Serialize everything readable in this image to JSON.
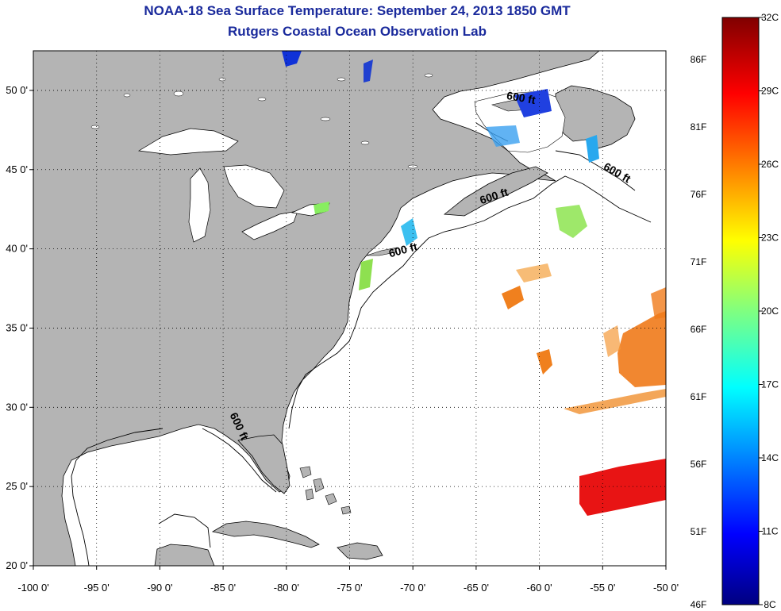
{
  "title": "NOAA-18 Sea Surface Temperature:  September 24, 2013 1850 GMT",
  "subtitle": "Rutgers Coastal Ocean Observation Lab",
  "map": {
    "lon_range": [
      -100,
      -50
    ],
    "lat_range": [
      20,
      52.5
    ],
    "lon_ticks": [
      {
        "value": -100,
        "label": "-100 0'"
      },
      {
        "value": -95,
        "label": "-95 0'"
      },
      {
        "value": -90,
        "label": "-90 0'"
      },
      {
        "value": -85,
        "label": "-85 0'"
      },
      {
        "value": -80,
        "label": "-80 0'"
      },
      {
        "value": -75,
        "label": "-75 0'"
      },
      {
        "value": -70,
        "label": "-70 0'"
      },
      {
        "value": -65,
        "label": "-65 0'"
      },
      {
        "value": -60,
        "label": "-60 0'"
      },
      {
        "value": -55,
        "label": "-55 0'"
      },
      {
        "value": -50,
        "label": "-50 0'"
      }
    ],
    "lat_ticks": [
      {
        "value": 20,
        "label": "20 0'"
      },
      {
        "value": 25,
        "label": "25 0'"
      },
      {
        "value": 30,
        "label": "30 0'"
      },
      {
        "value": 35,
        "label": "35 0'"
      },
      {
        "value": 40,
        "label": "40 0'"
      },
      {
        "value": 45,
        "label": "45 0'"
      },
      {
        "value": 50,
        "label": "50 0'"
      }
    ],
    "grid": "dotted",
    "land_color": "#b4b4b4",
    "ocean_color": "#ffffff",
    "contour_labels": [
      {
        "text": "600 ft",
        "lon": -61.5,
        "lat": 49.3,
        "angle": 10
      },
      {
        "text": "600 ft",
        "lon": -54,
        "lat": 44.6,
        "angle": 30
      },
      {
        "text": "600 ft",
        "lon": -63.5,
        "lat": 43.1,
        "angle": -18
      },
      {
        "text": "600 ft",
        "lon": -70.7,
        "lat": 39.7,
        "angle": -15
      },
      {
        "text": "600 ft",
        "lon": -84,
        "lat": 28.7,
        "angle": 65
      }
    ]
  },
  "colorbar": {
    "fahrenheit": [
      "86F",
      "81F",
      "76F",
      "71F",
      "66F",
      "61F",
      "56F",
      "51F",
      "46F"
    ],
    "celsius": [
      "32C",
      "29C",
      "26C",
      "23C",
      "20C",
      "17C",
      "14C",
      "11C",
      "8C"
    ],
    "colors": [
      "#800000",
      "#ff0000",
      "#ff8000",
      "#ffff00",
      "#80ff80",
      "#00ffff",
      "#0080ff",
      "#0000ff",
      "#000080"
    ]
  }
}
